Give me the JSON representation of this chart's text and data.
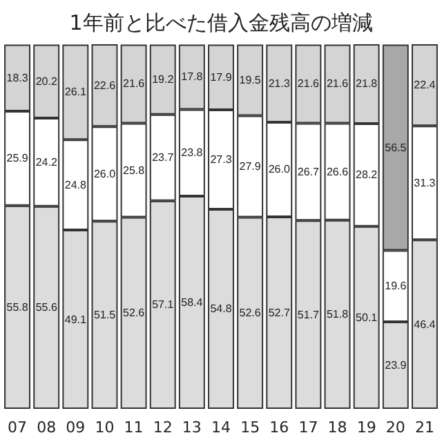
{
  "chart_data": {
    "type": "bar",
    "title": "1年前と比べた借入金残高の増減",
    "stacked": true,
    "categories": [
      "07",
      "08",
      "09",
      "10",
      "11",
      "12",
      "13",
      "14",
      "15",
      "16",
      "17",
      "18",
      "19",
      "20",
      "21"
    ],
    "series": [
      {
        "color": "#dcdcdc",
        "values": [
          55.8,
          55.6,
          49.1,
          51.5,
          52.6,
          57.1,
          58.4,
          54.8,
          52.6,
          52.7,
          51.7,
          51.8,
          50.1,
          23.9,
          46.4
        ],
        "value_labels": [
          "55.8",
          "55.6",
          "49.1",
          "51.5",
          "52.6",
          "57.1",
          "58.4",
          "54.8",
          "52.6",
          "52.7",
          "51.7",
          "51.8",
          "50.1",
          "23.9",
          "46.4"
        ]
      },
      {
        "color": "#ffffff",
        "values": [
          25.9,
          24.2,
          24.8,
          26.0,
          25.8,
          23.7,
          23.8,
          27.3,
          27.9,
          26.0,
          26.7,
          26.6,
          28.2,
          19.6,
          31.3
        ],
        "value_labels": [
          "25.9",
          "24.2",
          "24.8",
          "26.0",
          "25.8",
          "23.7",
          "23.8",
          "27.3",
          "27.9",
          "26.0",
          "26.7",
          "26.6",
          "28.2",
          "19.6",
          "31.3"
        ]
      },
      {
        "color": "#d4d4d4",
        "colors": [
          "#d4d4d4",
          "#d4d4d4",
          "#d4d4d4",
          "#d4d4d4",
          "#d4d4d4",
          "#d4d4d4",
          "#d4d4d4",
          "#d4d4d4",
          "#d4d4d4",
          "#d4d4d4",
          "#d4d4d4",
          "#d4d4d4",
          "#d4d4d4",
          "#a8a8a8",
          "#d4d4d4"
        ],
        "values": [
          18.3,
          20.2,
          26.1,
          22.6,
          21.6,
          19.2,
          17.8,
          17.9,
          19.5,
          21.3,
          21.6,
          21.6,
          21.8,
          56.5,
          22.4
        ],
        "value_labels": [
          "18.3",
          "20.2",
          "26.1",
          "22.6",
          "21.6",
          "19.2",
          "17.8",
          "17.9",
          "19.5",
          "21.3",
          "21.6",
          "21.6",
          "21.8",
          "56.5",
          "22.4"
        ]
      }
    ]
  }
}
